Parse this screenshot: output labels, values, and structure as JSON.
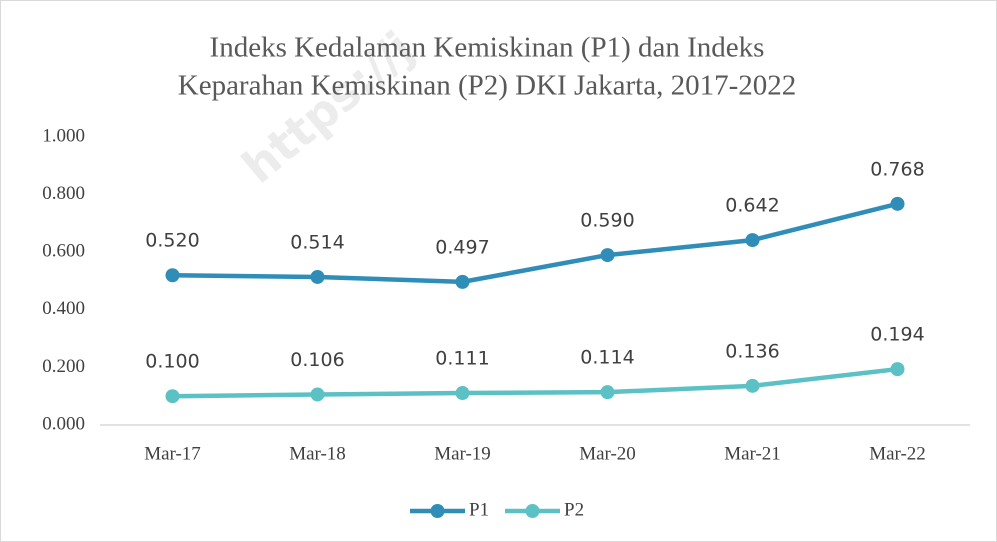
{
  "chart_data": {
    "type": "line",
    "title": [
      "Indeks Kedalaman Kemiskinan (P1) dan Indeks",
      "Keparahan Kemiskinan (P2) DKI Jakarta, 2017-2022"
    ],
    "watermark": "https://j",
    "categories": [
      "Mar-17",
      "Mar-18",
      "Mar-19",
      "Mar-20",
      "Mar-21",
      "Mar-22"
    ],
    "series": [
      {
        "name": "P1",
        "color": "#2f8db8",
        "values": [
          0.52,
          0.514,
          0.497,
          0.59,
          0.642,
          0.768
        ],
        "value_labels": [
          "0.520",
          "0.514",
          "0.497",
          "0.590",
          "0.642",
          "0.768"
        ]
      },
      {
        "name": "P2",
        "color": "#5cc1c5",
        "values": [
          0.1,
          0.106,
          0.111,
          0.114,
          0.136,
          0.194
        ],
        "value_labels": [
          "0.100",
          "0.106",
          "0.111",
          "0.114",
          "0.136",
          "0.194"
        ]
      }
    ],
    "ylim": [
      0,
      1
    ],
    "yticks": [
      {
        "value": 0,
        "label": "0.000"
      },
      {
        "value": 0.2,
        "label": "0.200"
      },
      {
        "value": 0.4,
        "label": "0.400"
      },
      {
        "value": 0.6,
        "label": "0.600"
      },
      {
        "value": 0.8,
        "label": "0.800"
      },
      {
        "value": 1,
        "label": "1.000"
      }
    ],
    "grid": false,
    "legend": "bottom"
  }
}
